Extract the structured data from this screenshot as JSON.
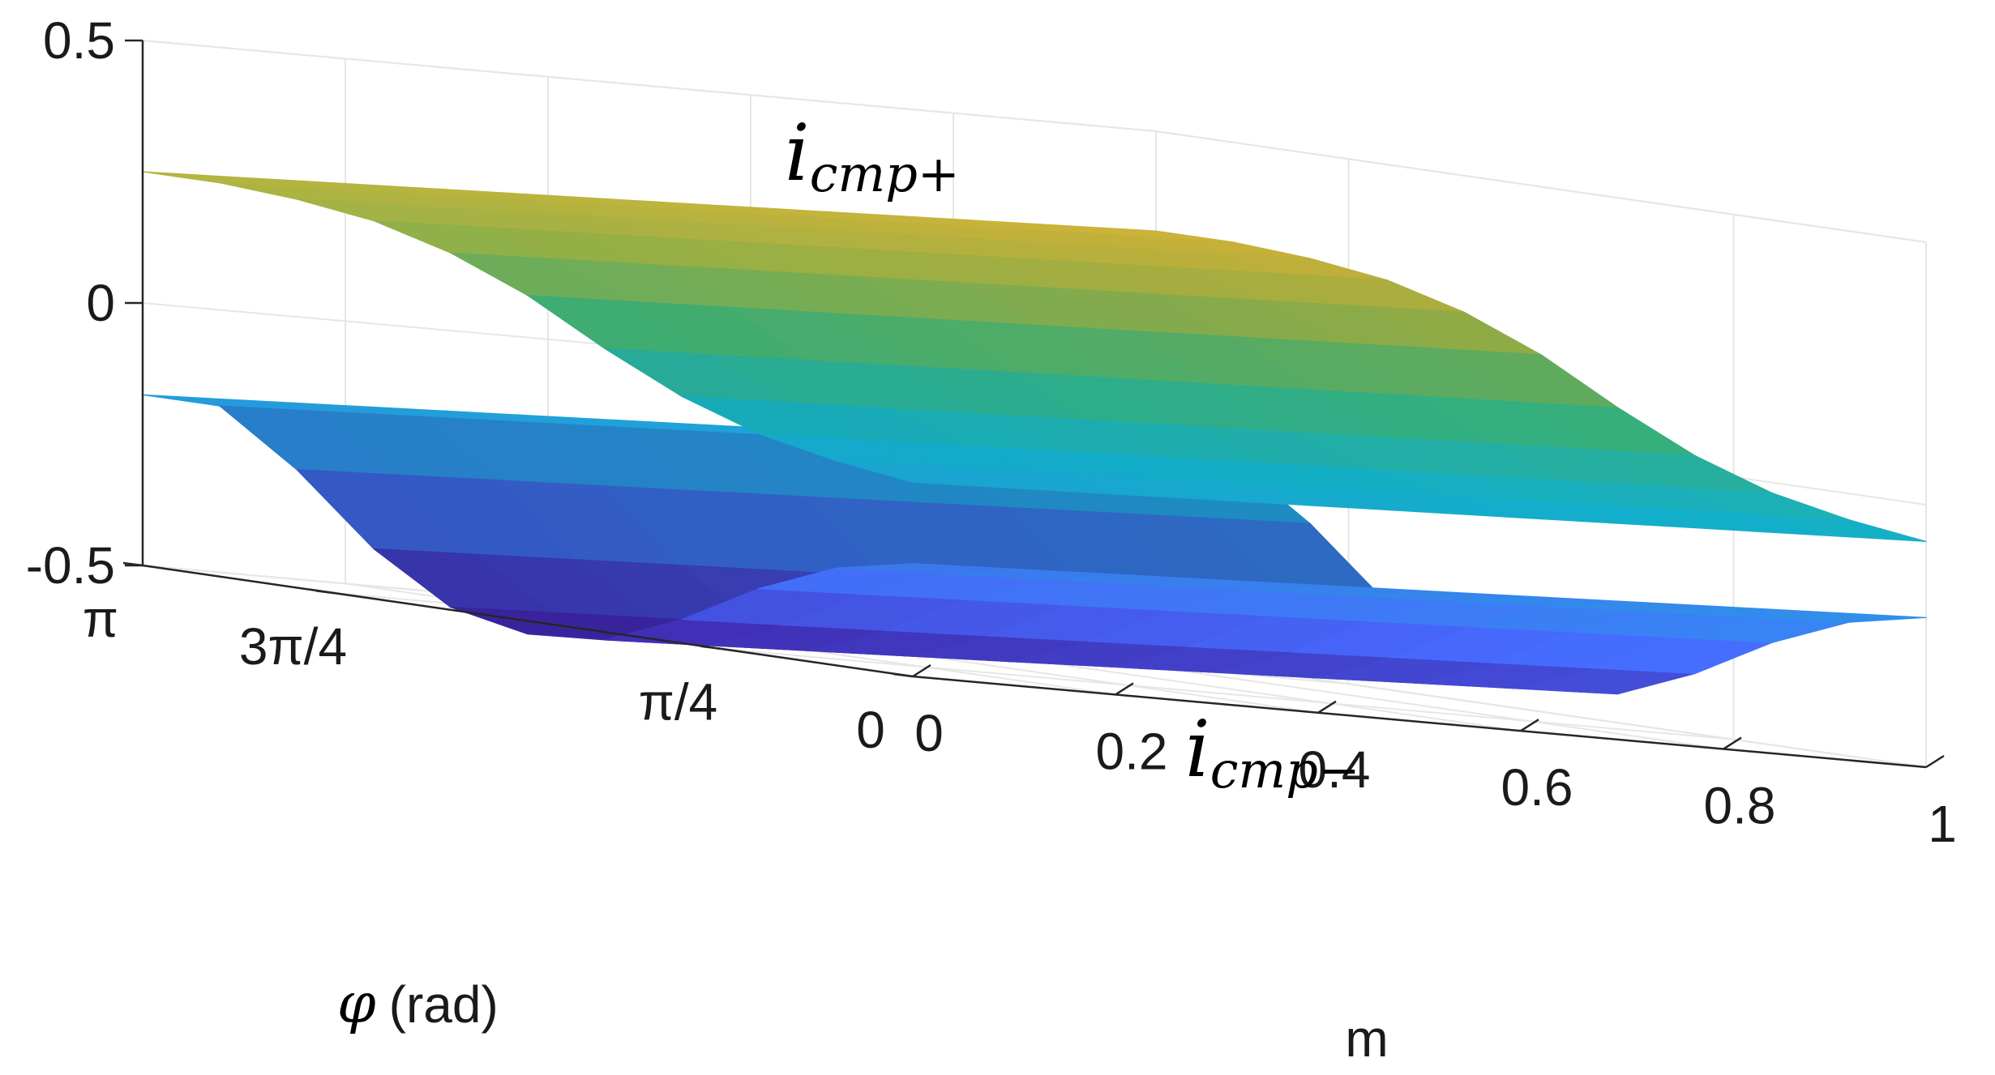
{
  "chart_data": {
    "type": "surface",
    "title": "",
    "axes": {
      "x": {
        "label": "m",
        "range": [
          0,
          1
        ],
        "ticks": [
          0,
          0.2,
          0.4,
          0.6,
          0.8,
          1
        ],
        "tick_labels": [
          "0",
          "0.2",
          "0.4",
          "0.6",
          "0.8",
          "1"
        ]
      },
      "y": {
        "label": "φ (rad)",
        "symbol": "φ",
        "unit_text": "(rad)",
        "range": [
          0,
          3.14159
        ],
        "ticks": [
          0,
          0.7854,
          2.3562,
          3.14159
        ],
        "tick_labels": [
          "0",
          "π/4",
          "3π/4",
          "π"
        ]
      },
      "z": {
        "label": "",
        "range": [
          -0.5,
          0.5
        ],
        "ticks": [
          -0.5,
          0,
          0.5
        ],
        "tick_labels": [
          "-0.5",
          "0",
          "0.5"
        ]
      }
    },
    "grid": true,
    "colormap": "parula",
    "colormap_stops": [
      "#3e26a8",
      "#4366f2",
      "#2e96ec",
      "#13bbd8",
      "#40c788",
      "#a5bf4b",
      "#edb732",
      "#f8e21e"
    ],
    "color_range": [
      -0.5,
      0.5
    ],
    "series": [
      {
        "name": "i_cmp+",
        "label": {
          "base": "i",
          "sub": "cmp+"
        },
        "m": [
          0,
          0.1,
          0.2,
          0.3,
          0.4,
          0.5,
          0.6,
          0.7,
          0.8,
          0.9,
          1.0
        ],
        "phi": [
          0,
          0.3142,
          0.6283,
          0.9425,
          1.2566,
          1.5708,
          1.885,
          2.1991,
          2.5133,
          2.8274,
          3.1416
        ],
        "profile_vs_phi": [
          -0.1,
          -0.08,
          -0.05,
          0.0,
          0.07,
          0.15,
          0.21,
          0.25,
          0.27,
          0.28,
          0.28
        ],
        "trend_vs_m": 0.06
      },
      {
        "name": "i_cmp-",
        "label": {
          "base": "i",
          "sub": "cmp−"
        },
        "m": [
          0,
          0.1,
          0.2,
          0.3,
          0.4,
          0.5,
          0.6,
          0.7,
          0.8,
          0.9,
          1.0
        ],
        "phi": [
          0,
          0.3142,
          0.6283,
          0.9425,
          1.2566,
          1.5708,
          1.885,
          2.1991,
          2.5133,
          2.8274,
          3.1416
        ],
        "profile_vs_phi": [
          -0.25,
          -0.28,
          -0.34,
          -0.42,
          -0.48,
          -0.49,
          -0.46,
          -0.37,
          -0.24,
          -0.14,
          -0.14
        ],
        "trend_vs_m": 0.07
      }
    ]
  }
}
